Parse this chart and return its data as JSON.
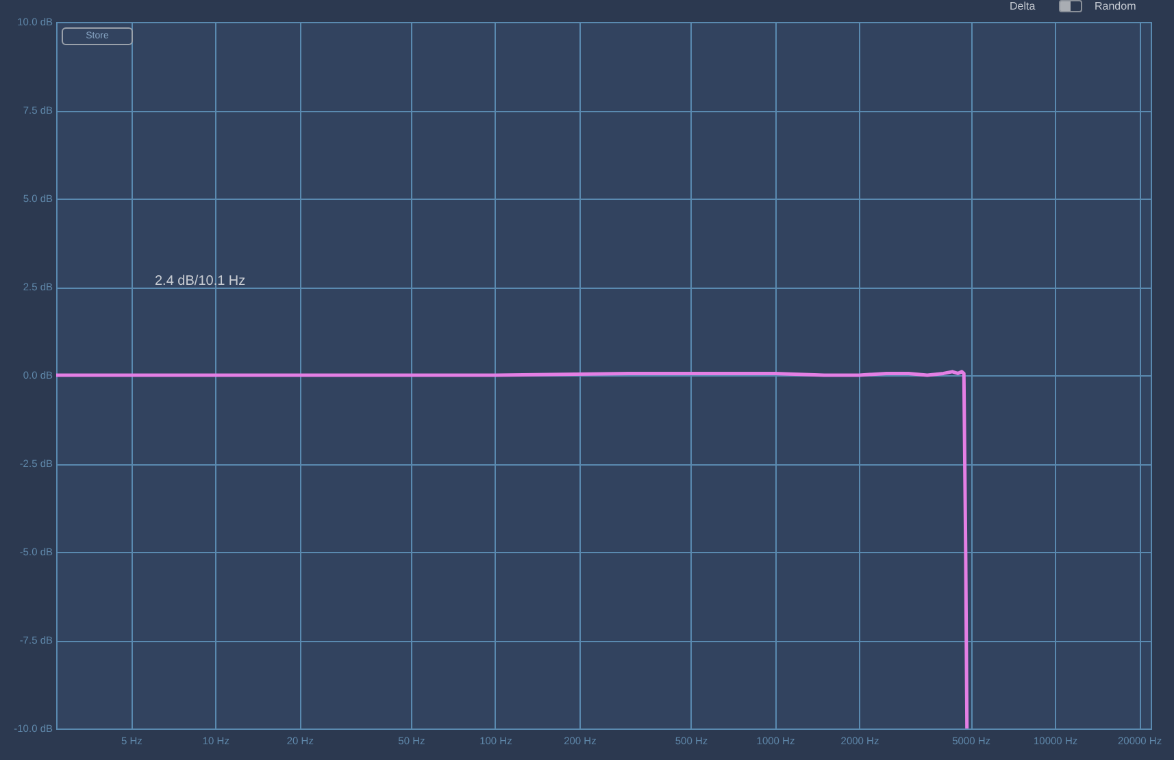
{
  "chart_data": {
    "type": "line",
    "log": "x",
    "grid": true,
    "xlim": [
      2.7,
      22000
    ],
    "xticks": [
      {
        "value": 5,
        "label": "5 Hz"
      },
      {
        "value": 10,
        "label": "10 Hz"
      },
      {
        "value": 20,
        "label": "20 Hz"
      },
      {
        "value": 50,
        "label": "50 Hz"
      },
      {
        "value": 100,
        "label": "100 Hz"
      },
      {
        "value": 200,
        "label": "200 Hz"
      },
      {
        "value": 500,
        "label": "500 Hz"
      },
      {
        "value": 1000,
        "label": "1000 Hz"
      },
      {
        "value": 2000,
        "label": "2000 Hz"
      },
      {
        "value": 5000,
        "label": "5000 Hz"
      },
      {
        "value": 10000,
        "label": "10000 Hz"
      },
      {
        "value": 20000,
        "label": "20000 Hz"
      }
    ],
    "ylim": [
      -10,
      10
    ],
    "yticks": [
      {
        "value": -10,
        "label": "-10.0 dB"
      },
      {
        "value": -7.5,
        "label": "-7.5 dB"
      },
      {
        "value": -5,
        "label": "-5.0 dB"
      },
      {
        "value": -2.5,
        "label": "-2.5 dB"
      },
      {
        "value": 0,
        "label": "0.0 dB"
      },
      {
        "value": 2.5,
        "label": "2.5 dB"
      },
      {
        "value": 5,
        "label": "5.0 dB"
      },
      {
        "value": 7.5,
        "label": "7.5 dB"
      },
      {
        "value": 10,
        "label": "10.0 dB"
      }
    ],
    "x": [
      2.7,
      100,
      300,
      1000,
      1500,
      2000,
      2500,
      3000,
      3500,
      4000,
      4300,
      4500,
      4650,
      4730,
      4800,
      4850
    ],
    "series": [
      {
        "color": "#e47fe4",
        "values": [
          0,
          0,
          0.05,
          0.05,
          0,
          0,
          0.05,
          0.05,
          0,
          0.05,
          0.1,
          0.05,
          0.1,
          0.05,
          -5,
          -10
        ]
      }
    ],
    "annotations": [
      "2.4 dB/10.1 Hz",
      "Store",
      "Delta",
      "Random"
    ]
  }
}
